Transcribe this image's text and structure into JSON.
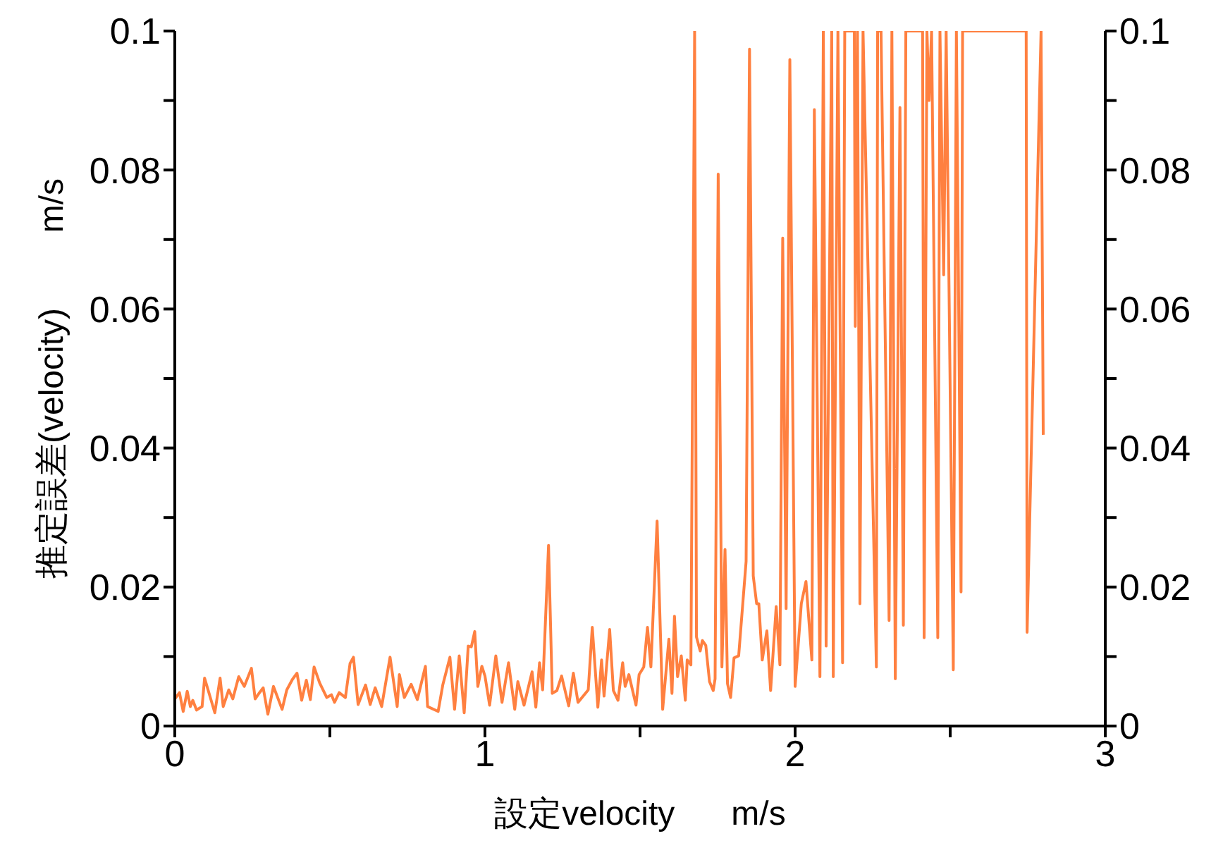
{
  "chart_data": {
    "type": "line",
    "xlabel": "設定velocity      m/s",
    "ylabel": "推定誤差(velocity)        m/s",
    "xlim": [
      0,
      3
    ],
    "xticks": [
      0,
      {
        "value": 0.5,
        "label": null
      },
      1,
      {
        "value": 1.5,
        "label": null
      },
      2,
      {
        "value": 2.5,
        "label": null
      },
      3
    ],
    "ylim": [
      0,
      0.1
    ],
    "yticks": [
      0,
      {
        "value": 0.01,
        "label": null
      },
      0.02,
      {
        "value": 0.03,
        "label": null
      },
      0.04,
      {
        "value": 0.05,
        "label": null
      },
      0.06,
      {
        "value": 0.07,
        "label": null
      },
      0.08,
      {
        "value": 0.09,
        "label": null
      },
      0.1
    ],
    "y2lim": [
      0,
      0.1
    ],
    "y2ticks": [
      0,
      {
        "value": 0.01,
        "label": null
      },
      0.02,
      {
        "value": 0.03,
        "label": null
      },
      0.04,
      {
        "value": 0.05,
        "label": null
      },
      0.06,
      {
        "value": 0.07,
        "label": null
      },
      0.08,
      {
        "value": 0.09,
        "label": null
      },
      0.1
    ],
    "grid": false,
    "legend": false,
    "marker": "none",
    "line_style": "solid",
    "series": [
      {
        "color": "#ff8040",
        "x": [
          0.0,
          0.015,
          0.027,
          0.04,
          0.05,
          0.058,
          0.07,
          0.088,
          0.096,
          0.129,
          0.146,
          0.156,
          0.174,
          0.187,
          0.206,
          0.224,
          0.247,
          0.259,
          0.273,
          0.285,
          0.3,
          0.318,
          0.346,
          0.361,
          0.379,
          0.394,
          0.409,
          0.424,
          0.437,
          0.449,
          0.467,
          0.49,
          0.505,
          0.515,
          0.53,
          0.55,
          0.565,
          0.576,
          0.591,
          0.615,
          0.63,
          0.646,
          0.667,
          0.694,
          0.717,
          0.724,
          0.74,
          0.762,
          0.782,
          0.808,
          0.815,
          0.849,
          0.864,
          0.887,
          0.902,
          0.917,
          0.933,
          0.946,
          0.956,
          0.967,
          0.977,
          0.99,
          1.0,
          1.015,
          1.035,
          1.055,
          1.076,
          1.096,
          1.106,
          1.126,
          1.152,
          1.164,
          1.176,
          1.186,
          1.205,
          1.217,
          1.232,
          1.247,
          1.27,
          1.285,
          1.3,
          1.333,
          1.346,
          1.364,
          1.376,
          1.384,
          1.402,
          1.414,
          1.429,
          1.444,
          1.452,
          1.464,
          1.487,
          1.497,
          1.512,
          1.524,
          1.535,
          1.555,
          1.573,
          1.593,
          1.603,
          1.611,
          1.621,
          1.633,
          1.646,
          1.652,
          1.664,
          1.676,
          1.682,
          1.694,
          1.701,
          1.712,
          1.724,
          1.736,
          1.742,
          1.752,
          1.764,
          1.774,
          1.782,
          1.792,
          1.803,
          1.818,
          1.842,
          1.853,
          1.865,
          1.876,
          1.883,
          1.894,
          1.909,
          1.921,
          1.939,
          1.951,
          1.96,
          1.971,
          1.983,
          2.0,
          2.02,
          2.035,
          2.054,
          2.062,
          2.08,
          2.091,
          2.1,
          2.118,
          2.123,
          2.138,
          2.153,
          2.16,
          2.191,
          2.194,
          2.201,
          2.209,
          2.219,
          2.262,
          2.266,
          2.277,
          2.303,
          2.312,
          2.323,
          2.338,
          2.349,
          2.357,
          2.411,
          2.416,
          2.425,
          2.432,
          2.44,
          2.46,
          2.467,
          2.479,
          2.487,
          2.51,
          2.52,
          2.535,
          2.54,
          2.745,
          2.748,
          2.793,
          2.8
        ],
        "values": [
          0.0039,
          0.0048,
          0.0021,
          0.005,
          0.0028,
          0.0037,
          0.0023,
          0.0028,
          0.0069,
          0.0019,
          0.0069,
          0.0028,
          0.0052,
          0.0039,
          0.0071,
          0.0057,
          0.0083,
          0.0039,
          0.0048,
          0.0055,
          0.0017,
          0.0057,
          0.0024,
          0.0052,
          0.0067,
          0.0076,
          0.0037,
          0.0066,
          0.0038,
          0.0085,
          0.0062,
          0.0041,
          0.0045,
          0.0034,
          0.0048,
          0.0041,
          0.009,
          0.0099,
          0.0031,
          0.0059,
          0.0031,
          0.0055,
          0.0028,
          0.0099,
          0.0028,
          0.0074,
          0.0041,
          0.006,
          0.0038,
          0.0086,
          0.0028,
          0.0021,
          0.0059,
          0.0099,
          0.0024,
          0.0101,
          0.0019,
          0.0115,
          0.0114,
          0.0136,
          0.0057,
          0.0086,
          0.0072,
          0.003,
          0.0101,
          0.0034,
          0.0091,
          0.0024,
          0.0064,
          0.003,
          0.0078,
          0.0027,
          0.0091,
          0.0052,
          0.026,
          0.0047,
          0.0051,
          0.0072,
          0.0029,
          0.0076,
          0.0034,
          0.0052,
          0.0142,
          0.0027,
          0.0095,
          0.0043,
          0.0139,
          0.0051,
          0.0037,
          0.0091,
          0.0057,
          0.0074,
          0.003,
          0.0074,
          0.0085,
          0.0142,
          0.0085,
          0.0295,
          0.0024,
          0.0125,
          0.0047,
          0.0158,
          0.0071,
          0.0101,
          0.0037,
          0.0095,
          0.0088,
          0.1,
          0.0128,
          0.0108,
          0.0123,
          0.0116,
          0.0064,
          0.0051,
          0.0068,
          0.0794,
          0.0085,
          0.0254,
          0.0061,
          0.0041,
          0.0098,
          0.0101,
          0.0237,
          0.0974,
          0.0216,
          0.0176,
          0.0176,
          0.0095,
          0.0137,
          0.0051,
          0.0172,
          0.0088,
          0.0702,
          0.0169,
          0.0959,
          0.0057,
          0.0176,
          0.0208,
          0.0095,
          0.0887,
          0.0071,
          0.1,
          0.0115,
          0.1,
          0.0071,
          0.1,
          0.0091,
          0.1,
          0.1,
          0.0575,
          0.1,
          0.0176,
          0.1,
          0.0085,
          0.1,
          0.1,
          0.0152,
          0.1,
          0.0068,
          0.089,
          0.0145,
          0.1,
          0.1,
          0.0127,
          0.1,
          0.09,
          0.1,
          0.0127,
          0.1,
          0.0649,
          0.1,
          0.0081,
          0.1,
          0.0193,
          0.1,
          0.1,
          0.0135,
          0.1,
          0.0419
        ]
      }
    ]
  }
}
